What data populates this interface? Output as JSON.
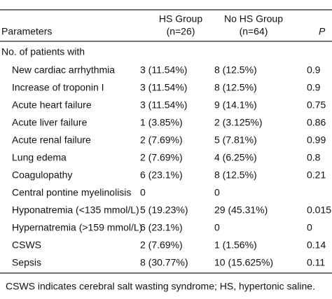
{
  "table": {
    "header": {
      "parameters": "Parameters",
      "hs_group": "HS Group",
      "hs_n": "(n=26)",
      "no_hs_group": "No HS Group",
      "no_hs_n": "(n=64)",
      "p": "P"
    },
    "section": "No. of patients with",
    "rows": [
      {
        "label": "New cardiac arrhythmia",
        "hs": "3 (11.54%)",
        "no_hs": "8 (12.5%)",
        "p": "0.9"
      },
      {
        "label": "Increase of troponin I",
        "hs": "3 (11.54%)",
        "no_hs": "8 (12.5%)",
        "p": "0.9"
      },
      {
        "label": "Acute heart failure",
        "hs": "3 (11.54%)",
        "no_hs": "9 (14.1%)",
        "p": "0.75"
      },
      {
        "label": "Acute liver failure",
        "hs": "1 (3.85%)",
        "no_hs": "2 (3.125%)",
        "p": "0.86"
      },
      {
        "label": "Acute renal failure",
        "hs": "2 (7.69%)",
        "no_hs": "5 (7.81%)",
        "p": "0.99"
      },
      {
        "label": "Lung edema",
        "hs": "2 (7.69%)",
        "no_hs": "4 (6.25%)",
        "p": "0.8"
      },
      {
        "label": "Coagulopathy",
        "hs": "6 (23.1%)",
        "no_hs": "8 (12.5%)",
        "p": "0.21"
      },
      {
        "label": "Central pontine myelinolisis",
        "hs": "0",
        "no_hs": "0"
      },
      {
        "label": "Hyponatremia (<135 mmol/L)",
        "hs": "5 (19.23%)",
        "no_hs": "29 (45.31%)",
        "p": "0.015"
      },
      {
        "label": "Hypernatremia (>159 mmol/L)",
        "hs": "6 (23.1%)",
        "no_hs": "0",
        "p": "0"
      },
      {
        "label": "CSWS",
        "hs": "2 (7.69%)",
        "no_hs": "1 (1.56%)",
        "p": "0.14"
      },
      {
        "label": "Sepsis",
        "hs": "8 (30.77%)",
        "no_hs": "10 (15.625%)",
        "p": "0.11"
      }
    ],
    "footnote": "CSWS indicates cerebral salt wasting syndrome; HS, hypertonic saline."
  }
}
